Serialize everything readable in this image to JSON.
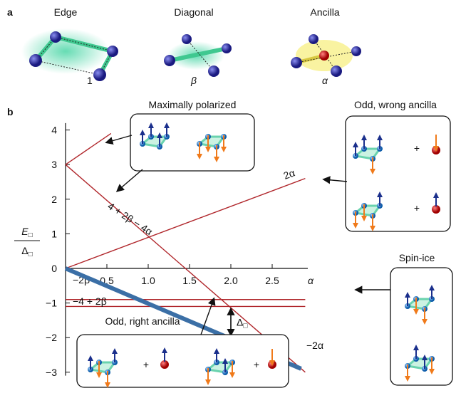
{
  "panel_a": {
    "label": "a",
    "titles": [
      "Edge",
      "Diagonal",
      "Ancilla"
    ],
    "couplings": [
      "1",
      "β",
      "α"
    ]
  },
  "chart_data": {
    "type": "line",
    "panel_label": "b",
    "xlabel": "α",
    "ylabel": {
      "numerator": "E",
      "denominator": "Δ",
      "sub": "□"
    },
    "xlim": [
      0,
      3.0
    ],
    "ylim": [
      -3.1,
      4.2
    ],
    "xticks": [
      0.5,
      {
        "value": 1,
        "label": "1.0"
      },
      1.5,
      {
        "value": 2,
        "label": "2.0"
      },
      2.5
    ],
    "yticks": [
      {
        "value": -3,
        "label": "−3"
      },
      {
        "value": -2,
        "label": "−2"
      },
      {
        "value": -1,
        "label": "−1"
      },
      0,
      1,
      2,
      3,
      4
    ],
    "series": [
      {
        "color": "#b0262b",
        "x": [
          0,
          0.55
        ],
        "values": [
          3,
          3.9
        ]
      },
      {
        "name": "4 + 2β − 4α",
        "color": "#b0262b",
        "x": [
          0,
          2.9
        ],
        "values": [
          3,
          -3
        ]
      },
      {
        "name": "2α",
        "color": "#b0262b",
        "x": [
          0,
          2.9
        ],
        "values": [
          0,
          2.6
        ]
      },
      {
        "name": "−2β",
        "color": "#b0262b",
        "x": [
          0,
          2.9
        ],
        "values": [
          -0.9,
          -0.9
        ]
      },
      {
        "name": "−4 + 2β",
        "color": "#b0262b",
        "x": [
          0,
          2.9
        ],
        "values": [
          -1.1,
          -1.1
        ]
      },
      {
        "name": "−2α",
        "color": "#3b6fa6",
        "x": [
          0,
          2.85
        ],
        "values": [
          0,
          -2.9
        ]
      }
    ],
    "annotations": {
      "maximally_polarized": "Maximally polarized",
      "odd_wrong": "Odd, wrong ancilla",
      "spin_ice": "Spin-ice",
      "odd_right": "Odd, right ancilla",
      "plus": "+"
    }
  }
}
